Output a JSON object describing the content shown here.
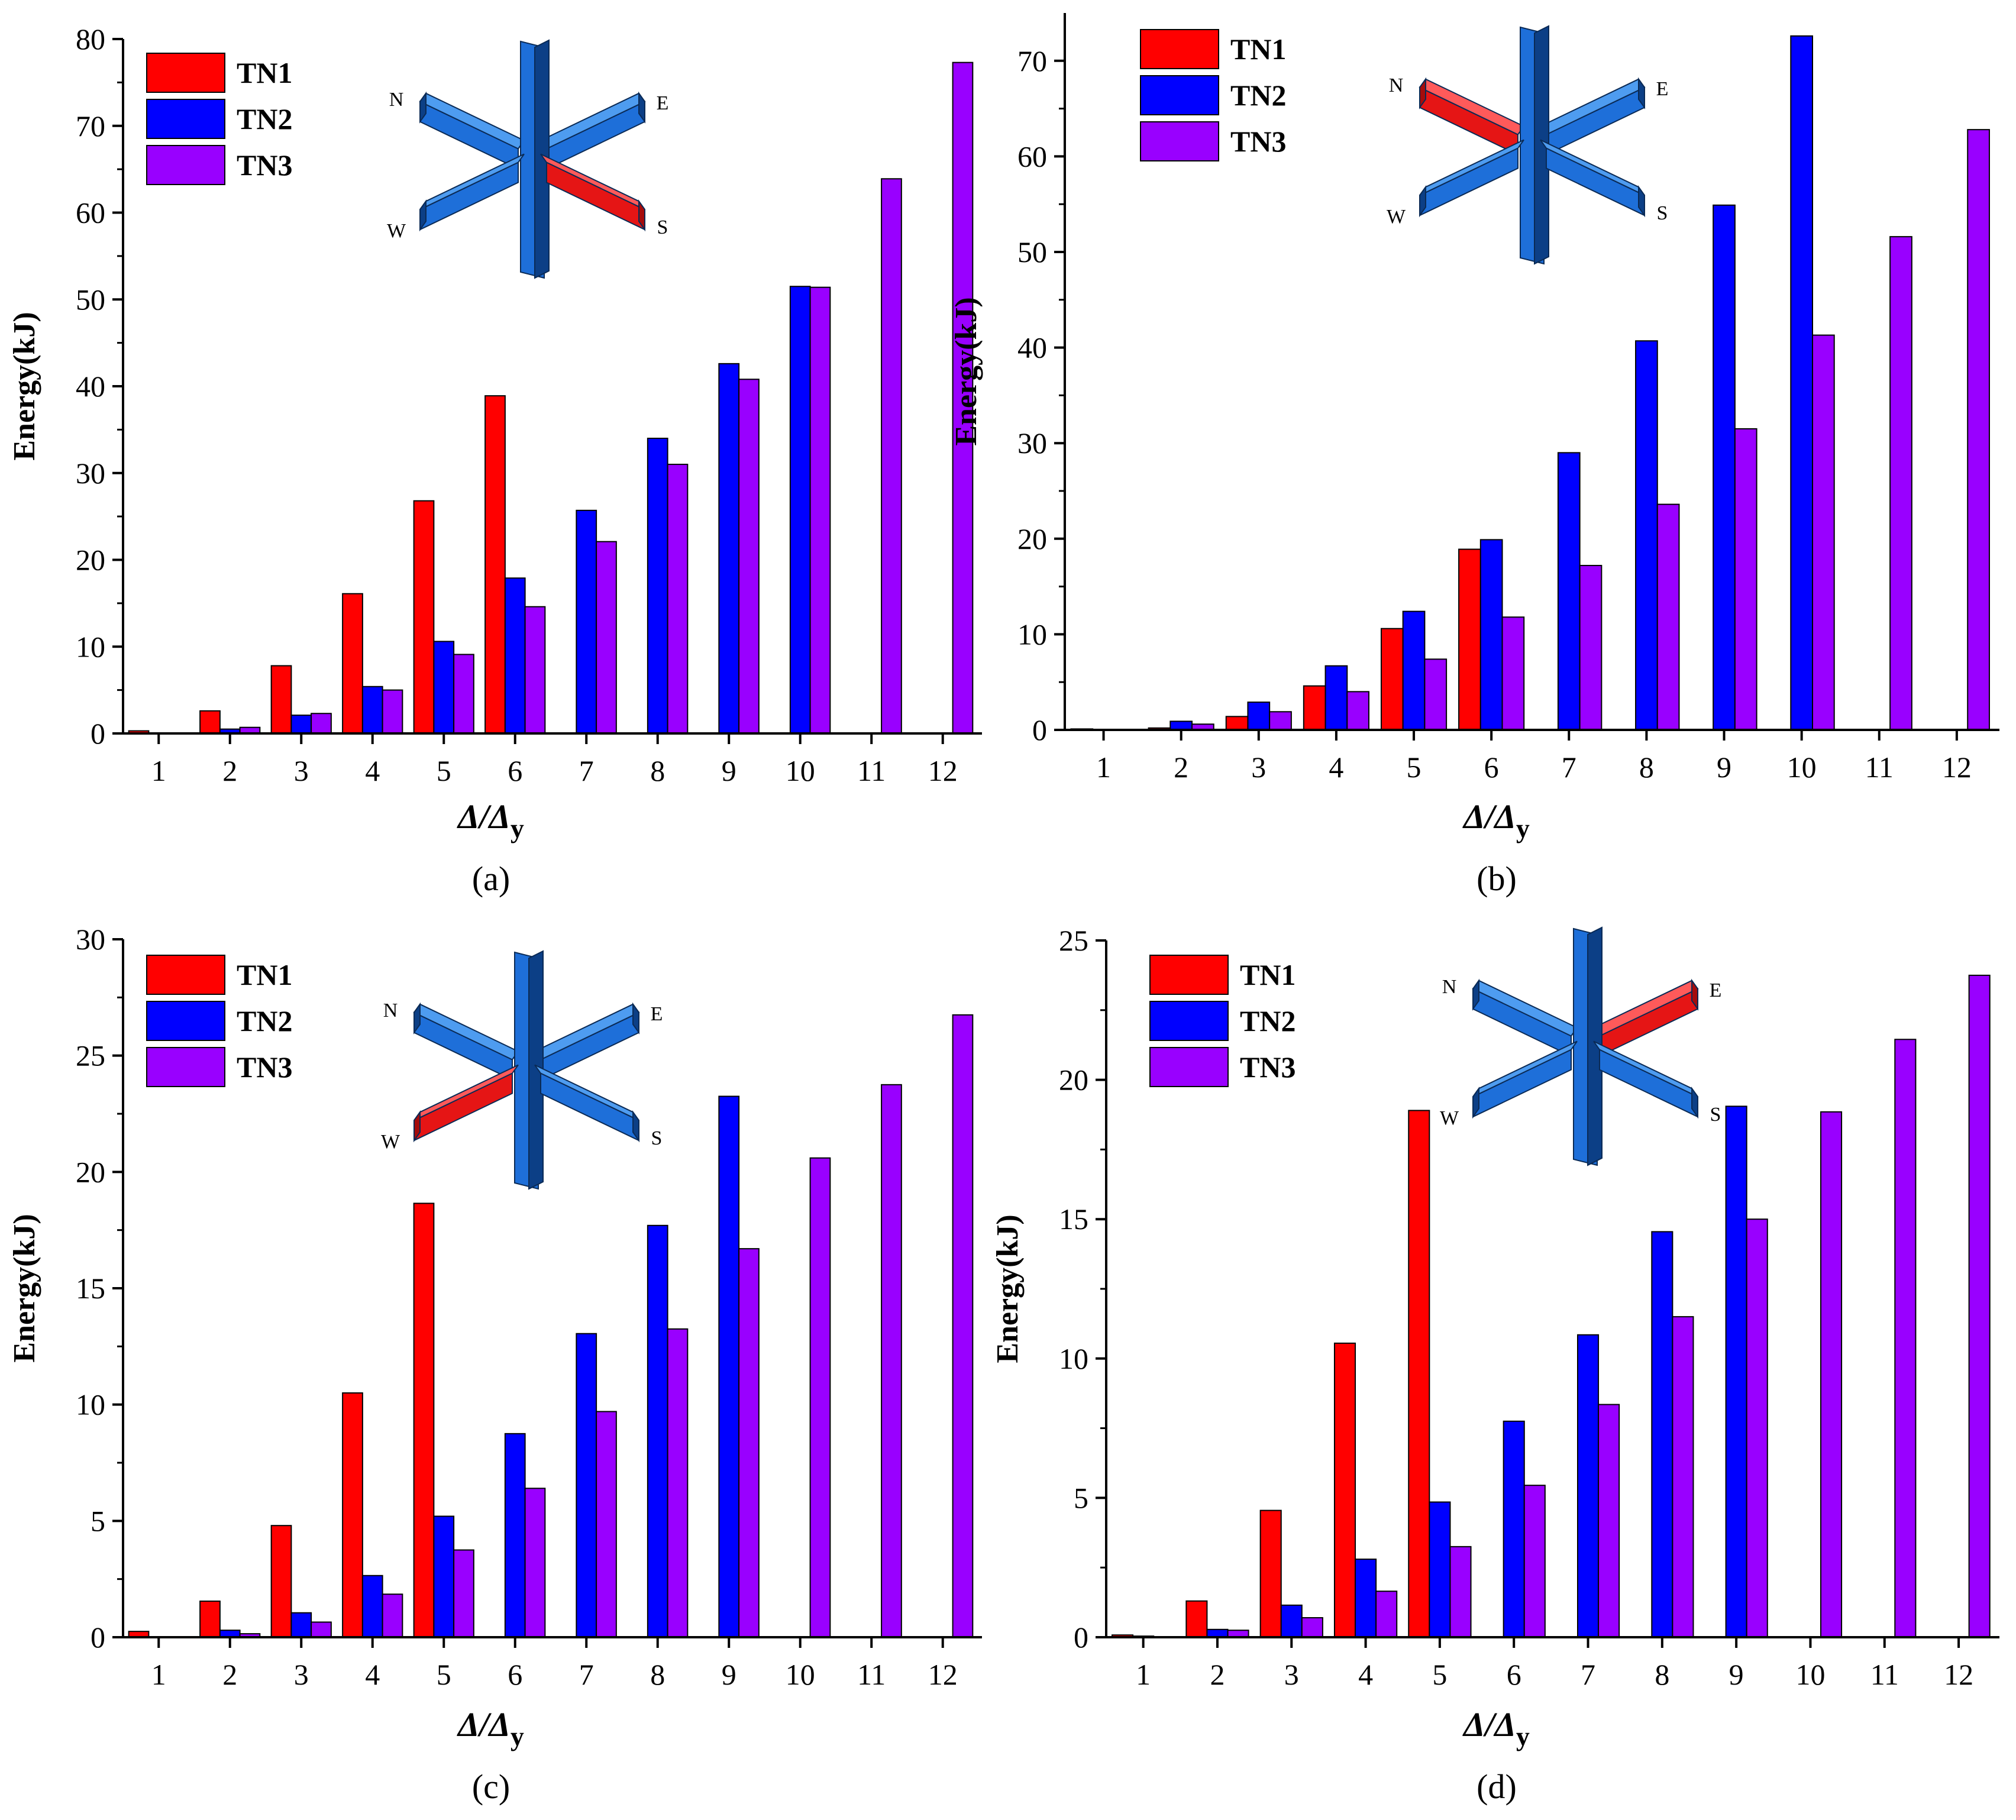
{
  "colors": {
    "TN1": "#ff0000",
    "TN2": "#0000ff",
    "TN3": "#9900ff",
    "axis": "#000000",
    "beam": "#1e6fd9",
    "beam_dark": "#0c3f86",
    "beam_light": "#4e9cf0",
    "highlight": "#e51515",
    "highlight_dark": "#a50c0c"
  },
  "chart_data": [
    {
      "type": "bar",
      "panel_label": "(a)",
      "ylabel": "Energy(kJ)",
      "xlabel": {
        "main": "Δ/Δ",
        "sub": "y"
      },
      "ylim": [
        0,
        80
      ],
      "yticks": [
        0,
        10,
        20,
        30,
        40,
        50,
        60,
        70,
        80
      ],
      "categories": [
        "1",
        "2",
        "3",
        "4",
        "5",
        "6",
        "7",
        "8",
        "9",
        "10",
        "11",
        "12"
      ],
      "legend": [
        "TN1",
        "TN2",
        "TN3"
      ],
      "series": [
        {
          "name": "TN1",
          "values": [
            0.3,
            2.6,
            7.8,
            16.1,
            26.8,
            38.9,
            null,
            null,
            null,
            null,
            null,
            null
          ]
        },
        {
          "name": "TN2",
          "values": [
            null,
            0.5,
            2.1,
            5.4,
            10.6,
            17.9,
            25.7,
            34.0,
            42.6,
            51.5,
            null,
            null
          ]
        },
        {
          "name": "TN3",
          "values": [
            null,
            0.7,
            2.3,
            5.0,
            9.1,
            14.6,
            22.1,
            31.0,
            40.8,
            51.4,
            63.9,
            77.3
          ]
        }
      ],
      "inset": {
        "highlight_arm": "S",
        "direction_labels": [
          "N",
          "E",
          "W",
          "S"
        ]
      }
    },
    {
      "type": "bar",
      "panel_label": "(b)",
      "ylabel": "Energy(kJ)",
      "xlabel": {
        "main": "Δ/Δ",
        "sub": "y"
      },
      "ylim": [
        0,
        75
      ],
      "yticks": [
        0,
        10,
        20,
        30,
        40,
        50,
        60,
        70
      ],
      "categories": [
        "1",
        "2",
        "3",
        "4",
        "5",
        "6",
        "7",
        "8",
        "9",
        "10",
        "11",
        "12"
      ],
      "legend": [
        "TN1",
        "TN2",
        "TN3"
      ],
      "series": [
        {
          "name": "TN1",
          "values": [
            0.1,
            0.2,
            1.4,
            4.6,
            10.6,
            18.9,
            null,
            null,
            null,
            null,
            null,
            null
          ]
        },
        {
          "name": "TN2",
          "values": [
            null,
            0.9,
            2.9,
            6.7,
            12.4,
            19.9,
            29.0,
            40.7,
            54.9,
            72.6,
            null,
            null
          ]
        },
        {
          "name": "TN3",
          "values": [
            null,
            0.6,
            1.9,
            4.0,
            7.4,
            11.8,
            17.2,
            23.6,
            31.5,
            41.3,
            51.6,
            62.8
          ]
        }
      ],
      "inset": {
        "highlight_arm": "N",
        "direction_labels": [
          "N",
          "E",
          "W",
          "S"
        ]
      }
    },
    {
      "type": "bar",
      "panel_label": "(c)",
      "ylabel": "Energy(kJ)",
      "xlabel": {
        "main": "Δ/Δ",
        "sub": "y"
      },
      "ylim": [
        0,
        30
      ],
      "yticks": [
        0,
        5,
        10,
        15,
        20,
        25,
        30
      ],
      "categories": [
        "1",
        "2",
        "3",
        "4",
        "5",
        "6",
        "7",
        "8",
        "9",
        "10",
        "11",
        "12"
      ],
      "legend": [
        "TN1",
        "TN2",
        "TN3"
      ],
      "series": [
        {
          "name": "TN1",
          "values": [
            0.25,
            1.55,
            4.8,
            10.5,
            18.65,
            null,
            null,
            null,
            null,
            null,
            null,
            null
          ]
        },
        {
          "name": "TN2",
          "values": [
            null,
            0.3,
            1.05,
            2.65,
            5.2,
            8.75,
            13.05,
            17.7,
            23.25,
            null,
            null,
            null
          ]
        },
        {
          "name": "TN3",
          "values": [
            null,
            0.15,
            0.65,
            1.85,
            3.75,
            6.4,
            9.7,
            13.25,
            16.7,
            20.6,
            23.75,
            26.75
          ]
        }
      ],
      "inset": {
        "highlight_arm": "W",
        "direction_labels": [
          "N",
          "E",
          "W",
          "S"
        ]
      }
    },
    {
      "type": "bar",
      "panel_label": "(d)",
      "ylabel": "Energy(kJ)",
      "xlabel": {
        "main": "Δ/Δ",
        "sub": "y"
      },
      "ylim": [
        0,
        25
      ],
      "yticks": [
        0,
        5,
        10,
        15,
        20,
        25
      ],
      "categories": [
        "1",
        "2",
        "3",
        "4",
        "5",
        "6",
        "7",
        "8",
        "9",
        "10",
        "11",
        "12"
      ],
      "legend": [
        "TN1",
        "TN2",
        "TN3"
      ],
      "series": [
        {
          "name": "TN1",
          "values": [
            0.08,
            1.3,
            4.55,
            10.55,
            18.9,
            null,
            null,
            null,
            null,
            null,
            null,
            null
          ]
        },
        {
          "name": "TN2",
          "values": [
            0.04,
            0.28,
            1.15,
            2.8,
            4.85,
            7.75,
            10.85,
            14.55,
            19.05,
            null,
            null,
            null
          ]
        },
        {
          "name": "TN3",
          "values": [
            null,
            0.25,
            0.7,
            1.65,
            3.25,
            5.45,
            8.35,
            11.5,
            15.0,
            18.85,
            21.45,
            23.75
          ]
        }
      ],
      "inset": {
        "highlight_arm": "E",
        "direction_labels": [
          "N",
          "E",
          "W",
          "S"
        ]
      }
    }
  ]
}
